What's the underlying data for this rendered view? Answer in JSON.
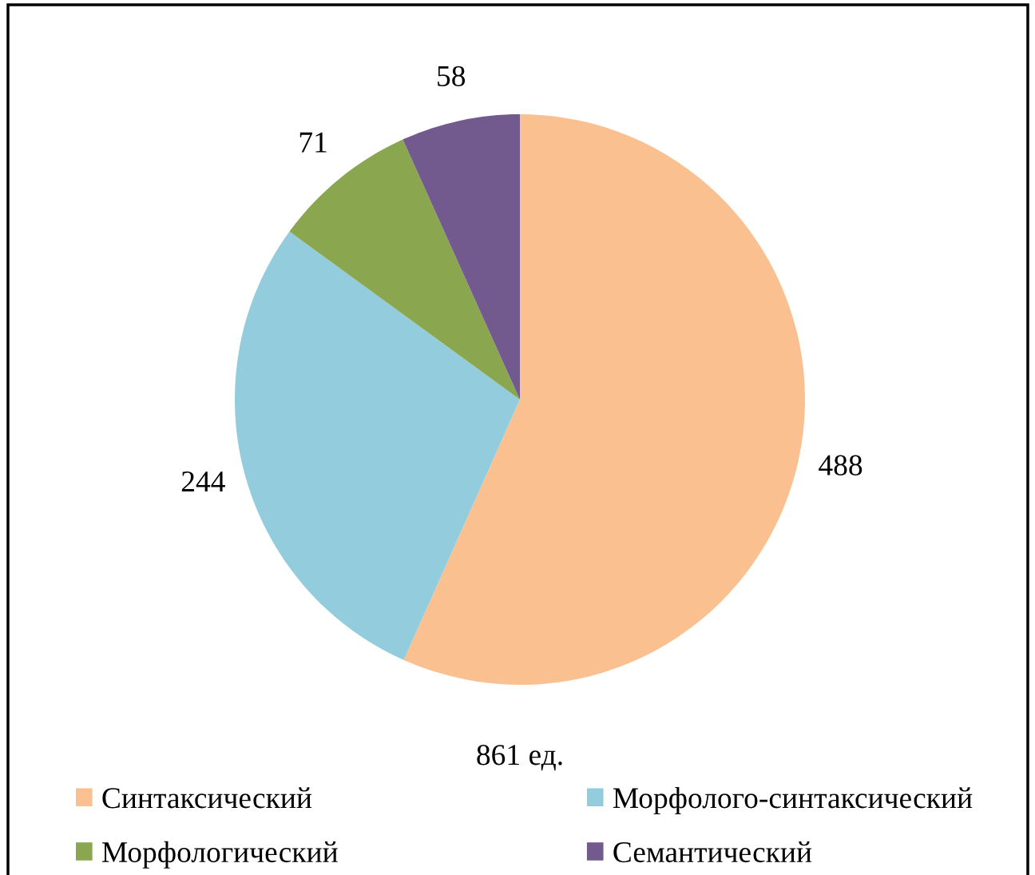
{
  "chart_data": {
    "type": "pie",
    "categories": [
      "Синтаксический",
      "Морфолого-синтаксический",
      "Морфологический",
      "Семантический"
    ],
    "values": [
      488,
      244,
      71,
      58
    ],
    "colors": [
      "#fac090",
      "#93cddd",
      "#8aa64f",
      "#725a8e"
    ],
    "data_labels": true,
    "annotations": [
      "861 ед."
    ],
    "legend": "bottom"
  }
}
